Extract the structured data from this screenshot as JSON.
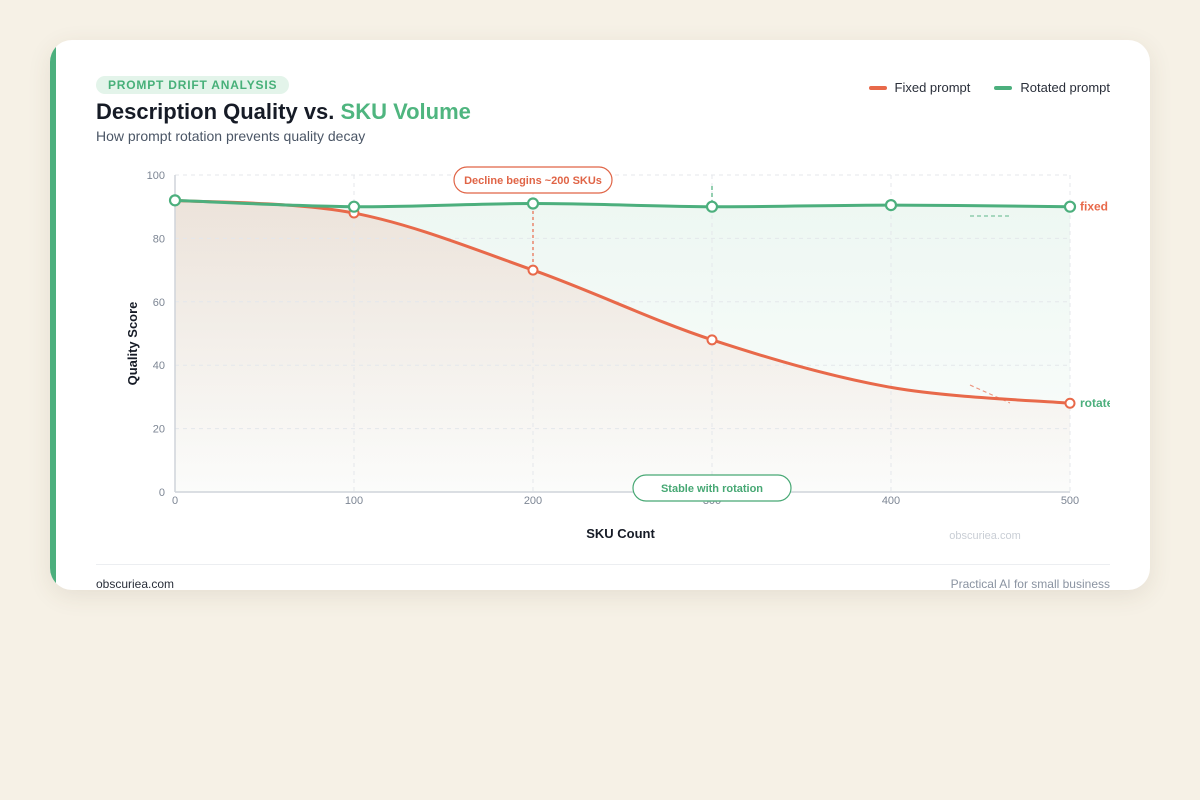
{
  "header": {
    "badge": "PROMPT DRIFT ANALYSIS",
    "title_main": "Description Quality vs. ",
    "title_highlight": "SKU Volume",
    "subtitle": "How prompt rotation prevents quality decay"
  },
  "legend": [
    {
      "label": "Fixed prompt",
      "color": "#e8694a"
    },
    {
      "label": "Rotated prompt",
      "color": "#4caf7d"
    }
  ],
  "annotations": {
    "decline": "Decline begins ~200 SKUs",
    "stable": "Stable with rotation"
  },
  "watermark": "obscuriea.com",
  "footer": {
    "left": "obscuriea.com",
    "right": "Practical AI for small business"
  },
  "chart_data": {
    "type": "line",
    "xlabel": "SKU Count",
    "ylabel": "Quality Score",
    "xlim": [
      0,
      500
    ],
    "ylim": [
      0,
      100
    ],
    "x_ticks": [
      0,
      100,
      200,
      300,
      400,
      500
    ],
    "y_ticks": [
      0,
      20,
      40,
      60,
      80,
      100
    ],
    "grid": true,
    "legend_position": "top-right",
    "series": [
      {
        "name": "Fixed prompt",
        "end_label": "fixed",
        "color": "#e8694a",
        "x": [
          0,
          100,
          200,
          300,
          400,
          500
        ],
        "y": [
          92,
          88,
          70,
          48,
          33,
          28
        ],
        "markers": [
          0,
          100,
          200,
          300,
          500
        ]
      },
      {
        "name": "Rotated prompt",
        "end_label": "rotated",
        "color": "#4caf7d",
        "x": [
          0,
          100,
          200,
          300,
          400,
          500
        ],
        "y": [
          92,
          90,
          91,
          90,
          90.5,
          90
        ],
        "markers": [
          0,
          100,
          200,
          300,
          400,
          500
        ]
      }
    ]
  }
}
